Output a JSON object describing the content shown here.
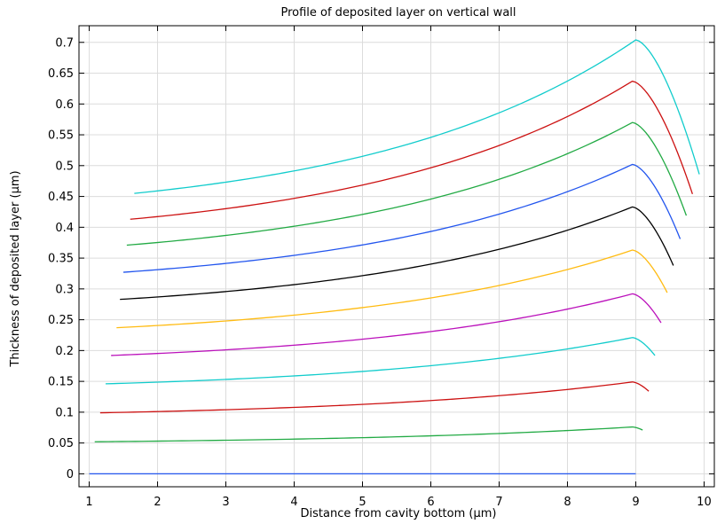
{
  "chart_data": {
    "type": "line",
    "title": "Profile of deposited layer on vertical wall",
    "xlabel": "Distance from cavity bottom (µm)",
    "ylabel": "Thickness of deposited layer (µm)",
    "xlim": [
      0.85,
      10.15
    ],
    "ylim": [
      -0.021,
      0.727
    ],
    "xticks": [
      "1",
      "2",
      "3",
      "4",
      "5",
      "6",
      "7",
      "8",
      "9",
      "10"
    ],
    "yticks": [
      "0",
      "0.05",
      "0.1",
      "0.15",
      "0.2",
      "0.25",
      "0.3",
      "0.35",
      "0.4",
      "0.45",
      "0.5",
      "0.55",
      "0.6",
      "0.65",
      "0.7"
    ],
    "grid": true,
    "series": [
      {
        "color": "#2255ee",
        "start_x": 1.0,
        "start_y": 0.0,
        "peak_x": 9.0,
        "peak_y": 0.0,
        "end_x": 9.0,
        "end_y": 0.0
      },
      {
        "color": "#22aa44",
        "start_x": 1.08,
        "start_y": 0.052,
        "peak_x": 8.95,
        "peak_y": 0.076,
        "end_x": 9.1,
        "end_y": 0.071
      },
      {
        "color": "#cc1111",
        "start_x": 1.16,
        "start_y": 0.099,
        "peak_x": 8.95,
        "peak_y": 0.149,
        "end_x": 9.19,
        "end_y": 0.134
      },
      {
        "color": "#11cccc",
        "start_x": 1.24,
        "start_y": 0.146,
        "peak_x": 8.95,
        "peak_y": 0.221,
        "end_x": 9.28,
        "end_y": 0.192
      },
      {
        "color": "#bb11bb",
        "start_x": 1.32,
        "start_y": 0.192,
        "peak_x": 8.95,
        "peak_y": 0.292,
        "end_x": 9.37,
        "end_y": 0.245
      },
      {
        "color": "#ffbb11",
        "start_x": 1.4,
        "start_y": 0.237,
        "peak_x": 8.95,
        "peak_y": 0.363,
        "end_x": 9.46,
        "end_y": 0.294
      },
      {
        "color": "#000000",
        "start_x": 1.45,
        "start_y": 0.283,
        "peak_x": 8.95,
        "peak_y": 0.433,
        "end_x": 9.55,
        "end_y": 0.338
      },
      {
        "color": "#2255ee",
        "start_x": 1.5,
        "start_y": 0.327,
        "peak_x": 8.95,
        "peak_y": 0.502,
        "end_x": 9.65,
        "end_y": 0.381
      },
      {
        "color": "#22aa44",
        "start_x": 1.55,
        "start_y": 0.371,
        "peak_x": 8.95,
        "peak_y": 0.57,
        "end_x": 9.74,
        "end_y": 0.419
      },
      {
        "color": "#cc1111",
        "start_x": 1.6,
        "start_y": 0.413,
        "peak_x": 8.95,
        "peak_y": 0.637,
        "end_x": 9.83,
        "end_y": 0.454
      },
      {
        "color": "#11cccc",
        "start_x": 1.66,
        "start_y": 0.455,
        "peak_x": 9.0,
        "peak_y": 0.704,
        "end_x": 9.93,
        "end_y": 0.486
      }
    ]
  }
}
